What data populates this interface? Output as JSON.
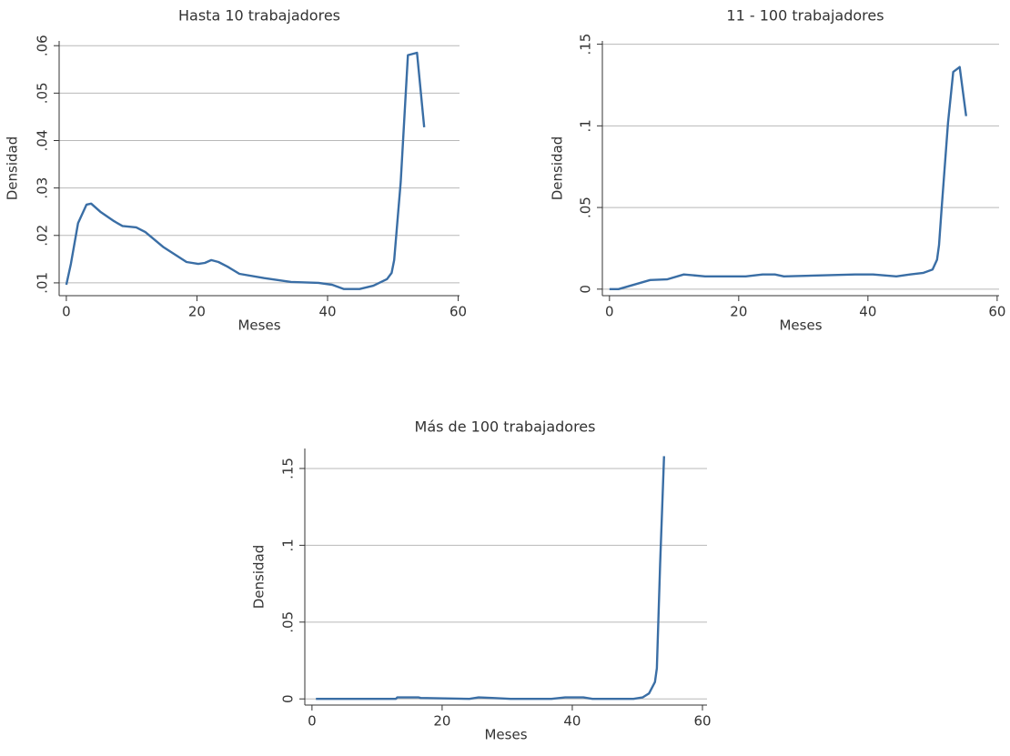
{
  "chart_data": [
    {
      "type": "line",
      "title": "Hasta 10 trabajadores",
      "x_label": "Meses",
      "y_label": "Densidad",
      "grid": true,
      "xlim": [
        -1.1,
        60.2
      ],
      "xticks": [
        0,
        20,
        40,
        60
      ],
      "ylim": [
        0.0073,
        0.061
      ],
      "yticks": [
        {
          "value": 0.01,
          "label": ".01"
        },
        {
          "value": 0.02,
          "label": ".02"
        },
        {
          "value": 0.03,
          "label": ".03"
        },
        {
          "value": 0.04,
          "label": ".04"
        },
        {
          "value": 0.05,
          "label": ".05"
        },
        {
          "value": 0.06,
          "label": ".06"
        }
      ],
      "series": [
        {
          "color": "#3a6ea5",
          "x": [
            0,
            0.7,
            1.8,
            3.1,
            3.8,
            5.2,
            7.3,
            8.6,
            10.7,
            12.1,
            14.9,
            18.4,
            20.2,
            21.2,
            22.2,
            23.3,
            24.7,
            26.5,
            30.3,
            34.4,
            38.6,
            40.7,
            42.5,
            44.9,
            47,
            49.1,
            49.8,
            50.2,
            51.2,
            52.3,
            53.7,
            54.8
          ],
          "values": [
            0.0096,
            0.014,
            0.0226,
            0.0265,
            0.0267,
            0.025,
            0.023,
            0.022,
            0.0217,
            0.0207,
            0.0175,
            0.0144,
            0.014,
            0.0142,
            0.0148,
            0.0144,
            0.0134,
            0.0119,
            0.011,
            0.0102,
            0.01,
            0.0096,
            0.0087,
            0.0087,
            0.0094,
            0.0108,
            0.0121,
            0.0148,
            0.0313,
            0.058,
            0.0585,
            0.0428
          ]
        }
      ]
    },
    {
      "type": "line",
      "title": "11 - 100 trabajadores",
      "x_label": "Meses",
      "y_label": "Densidad",
      "grid": true,
      "xlim": [
        -1.1,
        60.3
      ],
      "xticks": [
        0,
        20,
        40,
        60
      ],
      "ylim": [
        -0.004,
        0.152
      ],
      "yticks": [
        0,
        {
          "value": 0.05,
          "label": ".05"
        },
        {
          "value": 0.1,
          "label": ".1"
        },
        {
          "value": 0.15,
          "label": ".15"
        }
      ],
      "series": [
        {
          "color": "#3a6ea5",
          "x": [
            0,
            1.4,
            6.3,
            8.9,
            11.5,
            14.8,
            21.1,
            23.7,
            25.6,
            27,
            38,
            40.8,
            44.4,
            46.5,
            48.6,
            50,
            50.7,
            51,
            51.4,
            52.4,
            53.2,
            54.2,
            55.2
          ],
          "values": [
            0,
            0,
            0.0056,
            0.006,
            0.009,
            0.0078,
            0.0078,
            0.009,
            0.009,
            0.0078,
            0.009,
            0.009,
            0.0078,
            0.009,
            0.01,
            0.012,
            0.018,
            0.027,
            0.049,
            0.102,
            0.133,
            0.136,
            0.106
          ]
        }
      ]
    },
    {
      "type": "line",
      "title": "Más de 100 trabajadores",
      "x_label": "Meses",
      "y_label": "Densidad",
      "grid": true,
      "xlim": [
        -1.1,
        60.7
      ],
      "xticks": [
        0,
        20,
        40,
        60
      ],
      "ylim": [
        -0.004,
        0.163
      ],
      "yticks": [
        0,
        {
          "value": 0.05,
          "label": ".05"
        },
        {
          "value": 0.1,
          "label": ".1"
        },
        {
          "value": 0.15,
          "label": ".15"
        }
      ],
      "series": [
        {
          "color": "#3a6ea5",
          "x": [
            0.6,
            12.9,
            13.1,
            16.4,
            16.7,
            24.2,
            25.6,
            27.7,
            30.5,
            36.8,
            38.9,
            41.7,
            43.1,
            49.4,
            50.8,
            51.8,
            52.7,
            53,
            53.5,
            54.1
          ],
          "values": [
            0,
            0,
            0.001,
            0.001,
            0.0006,
            0,
            0.001,
            0.0006,
            0,
            0,
            0.001,
            0.001,
            0,
            0,
            0.001,
            0.0036,
            0.011,
            0.02,
            0.088,
            0.158
          ]
        }
      ]
    }
  ]
}
